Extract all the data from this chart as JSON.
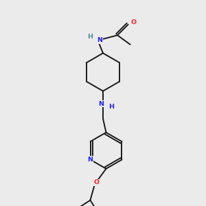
{
  "bg_color": "#ebebeb",
  "bond_color": "#1a1a1a",
  "N_color": "#2020ff",
  "O_color": "#ff2020",
  "NH_acetamide_color": "#4a9090",
  "figsize": [
    3.0,
    3.0
  ],
  "dpi": 100,
  "xlim": [
    0,
    10
  ],
  "ylim": [
    0,
    10
  ]
}
